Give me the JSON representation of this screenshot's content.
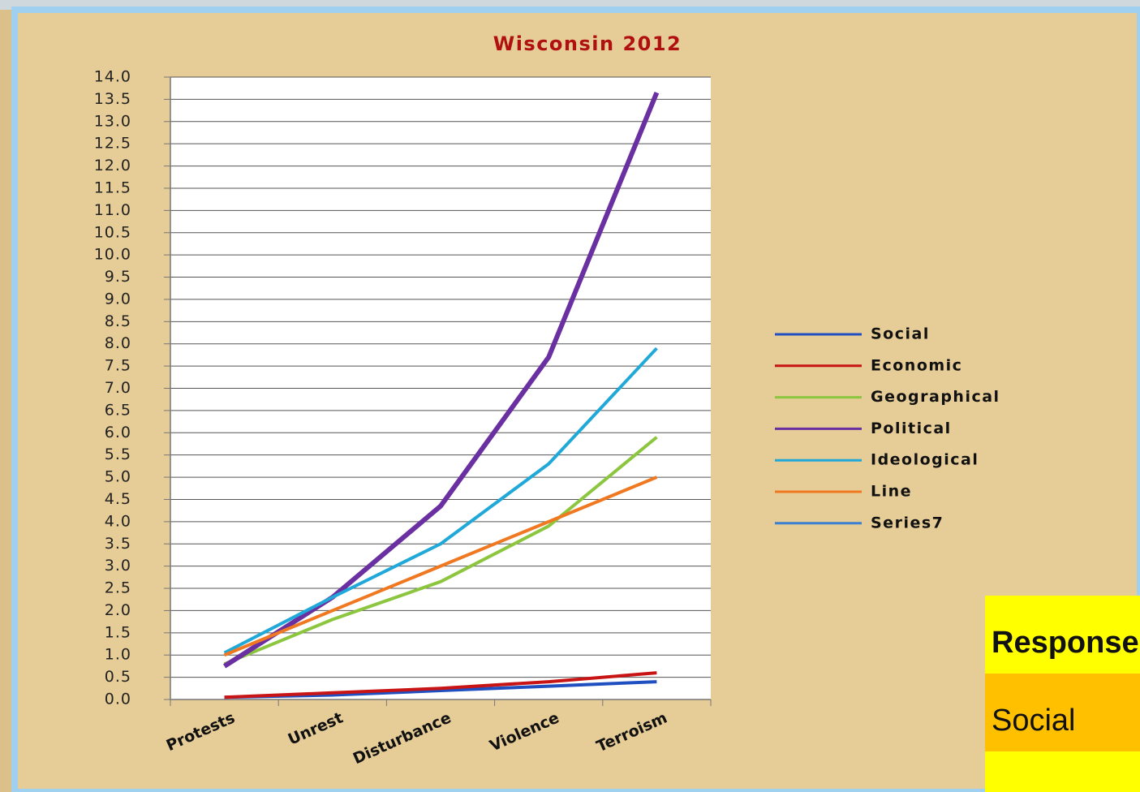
{
  "chart_data": {
    "type": "line",
    "title": "Wisconsin 2012",
    "categories": [
      "Protests",
      "Unrest",
      "Disturbance",
      "Violence",
      "Terroism"
    ],
    "series": [
      {
        "name": "Social",
        "color": "#1f4fc0",
        "values": [
          0.05,
          0.1,
          0.2,
          0.3,
          0.4
        ]
      },
      {
        "name": "Economic",
        "color": "#c81414",
        "values": [
          0.05,
          0.15,
          0.25,
          0.4,
          0.6
        ]
      },
      {
        "name": "Geographical",
        "color": "#8cc63f",
        "values": [
          0.8,
          1.8,
          2.65,
          3.9,
          5.9
        ]
      },
      {
        "name": "Political",
        "color": "#6a2fa0",
        "values": [
          0.75,
          2.3,
          4.35,
          7.7,
          13.65
        ]
      },
      {
        "name": "Ideological",
        "color": "#1fa8d8",
        "values": [
          1.05,
          2.3,
          3.5,
          5.3,
          7.9
        ]
      },
      {
        "name": "Line",
        "color": "#f07820",
        "values": [
          1.0,
          2.0,
          3.0,
          4.0,
          5.0
        ]
      },
      {
        "name": "Series7",
        "color": "#3a7fd0",
        "values": [
          null,
          null,
          null,
          null,
          null
        ]
      }
    ],
    "ylim": [
      0,
      14
    ],
    "yticks": [
      {
        "value": 0,
        "label": "0.0"
      },
      {
        "value": 0.5,
        "label": "0.5"
      },
      {
        "value": 1,
        "label": "1.0"
      },
      {
        "value": 1.5,
        "label": "1.5"
      },
      {
        "value": 2,
        "label": "2.0"
      },
      {
        "value": 2.5,
        "label": "2.5"
      },
      {
        "value": 3,
        "label": "3.0"
      },
      {
        "value": 3.5,
        "label": "3.5"
      },
      {
        "value": 4,
        "label": "4.0"
      },
      {
        "value": 4.5,
        "label": "4.5"
      },
      {
        "value": 5,
        "label": "5.0"
      },
      {
        "value": 5.5,
        "label": "5.5"
      },
      {
        "value": 6,
        "label": "6.0"
      },
      {
        "value": 6.5,
        "label": "6.5"
      },
      {
        "value": 7,
        "label": "7.0"
      },
      {
        "value": 7.5,
        "label": "7.5"
      },
      {
        "value": 8,
        "label": "8.0"
      },
      {
        "value": 8.5,
        "label": "8.5"
      },
      {
        "value": 9,
        "label": "9.0"
      },
      {
        "value": 9.5,
        "label": "9.5"
      },
      {
        "value": 10,
        "label": "10.0"
      },
      {
        "value": 10.5,
        "label": "10.5"
      },
      {
        "value": 11,
        "label": "11.0"
      },
      {
        "value": 11.5,
        "label": "11.5"
      },
      {
        "value": 12,
        "label": "12.0"
      },
      {
        "value": 12.5,
        "label": "12.5"
      },
      {
        "value": 13,
        "label": "13.0"
      },
      {
        "value": 13.5,
        "label": "13.5"
      },
      {
        "value": 14,
        "label": "14.0"
      }
    ],
    "grid": true,
    "legend": "right"
  },
  "table": {
    "header": "Response Re",
    "rows": [
      "Social"
    ]
  }
}
